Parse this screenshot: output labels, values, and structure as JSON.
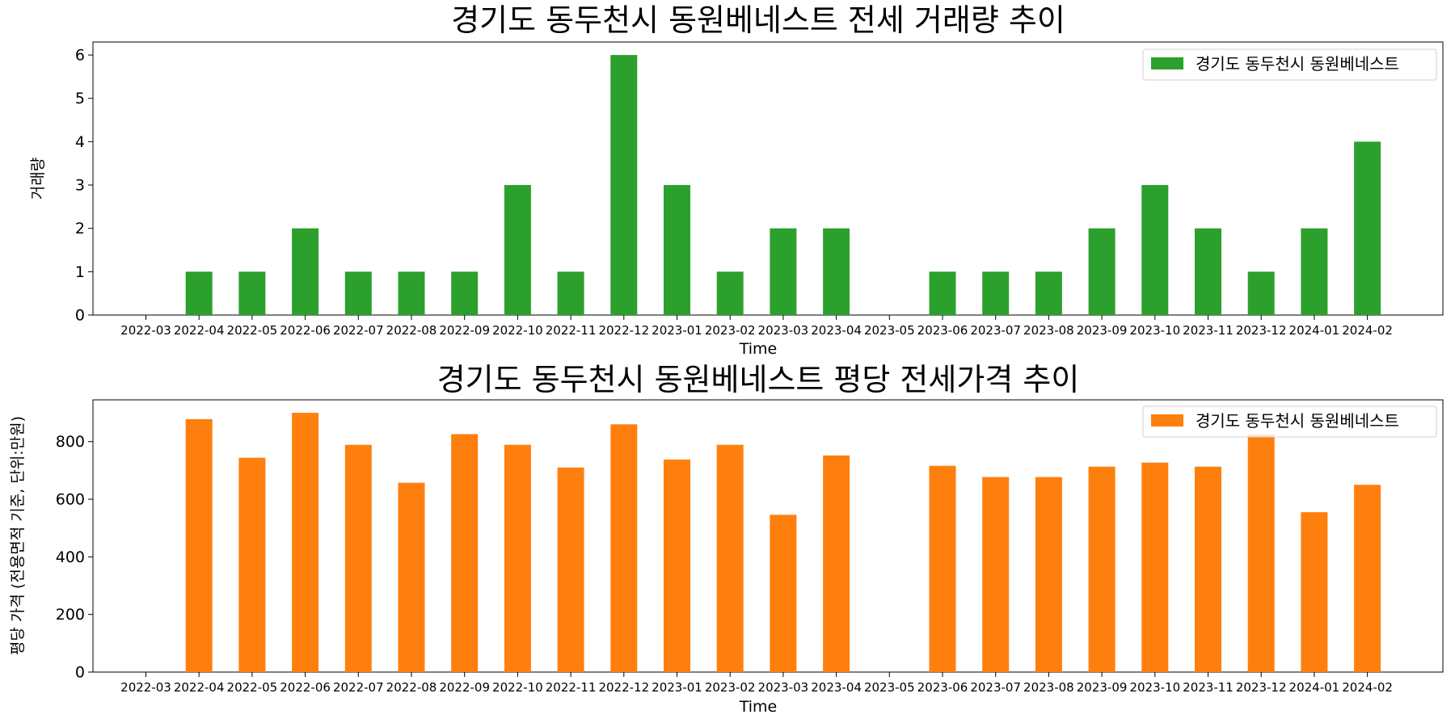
{
  "chart_data": [
    {
      "type": "bar",
      "title": "경기도 동두천시 동원베네스트 전세 거래량 추이",
      "xlabel": "Time",
      "ylabel": "거래량",
      "ylim": [
        0,
        6.3
      ],
      "yticks": [
        "0",
        "1",
        "2",
        "3",
        "4",
        "5",
        "6"
      ],
      "grid": false,
      "legend_position": "top-right",
      "categories": [
        "2022-03",
        "2022-04",
        "2022-05",
        "2022-06",
        "2022-07",
        "2022-08",
        "2022-09",
        "2022-10",
        "2022-11",
        "2022-12",
        "2023-01",
        "2023-02",
        "2023-03",
        "2023-04",
        "2023-05",
        "2023-06",
        "2023-07",
        "2023-08",
        "2023-09",
        "2023-10",
        "2023-11",
        "2023-12",
        "2024-01",
        "2024-02"
      ],
      "series": [
        {
          "name": "경기도 동두천시 동원베네스트",
          "color": "#2ca02c",
          "values": [
            0,
            1,
            1,
            2,
            1,
            1,
            1,
            3,
            1,
            6,
            3,
            1,
            2,
            2,
            0,
            1,
            1,
            1,
            2,
            3,
            2,
            1,
            2,
            4
          ]
        }
      ]
    },
    {
      "type": "bar",
      "title": "경기도 동두천시 동원베네스트 평당 전세가격 추이",
      "xlabel": "Time",
      "ylabel": "평당 가격 (전용면적 기준, 단위:만원)",
      "ylim": [
        0,
        945
      ],
      "yticks": [
        "0",
        "200",
        "400",
        "600",
        "800"
      ],
      "grid": false,
      "legend_position": "top-right",
      "categories": [
        "2022-03",
        "2022-04",
        "2022-05",
        "2022-06",
        "2022-07",
        "2022-08",
        "2022-09",
        "2022-10",
        "2022-11",
        "2022-12",
        "2023-01",
        "2023-02",
        "2023-03",
        "2023-04",
        "2023-05",
        "2023-06",
        "2023-07",
        "2023-08",
        "2023-09",
        "2023-10",
        "2023-11",
        "2023-12",
        "2024-01",
        "2024-02"
      ],
      "series": [
        {
          "name": "경기도 동두천시 동원베네스트",
          "color": "#ff7f0e",
          "values": [
            0,
            878,
            744,
            900,
            789,
            657,
            826,
            789,
            710,
            860,
            738,
            789,
            546,
            752,
            0,
            716,
            677,
            677,
            713,
            727,
            713,
            825,
            555,
            650
          ]
        }
      ]
    }
  ]
}
